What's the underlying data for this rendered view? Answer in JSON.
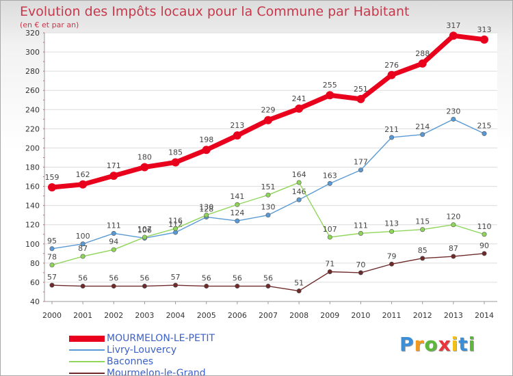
{
  "chart_data": {
    "type": "line",
    "title": "Evolution des Impôts locaux pour la Commune par Habitant",
    "subtitle": "(en € et par an)",
    "categories": [
      "2000",
      "2001",
      "2002",
      "2003",
      "2004",
      "2005",
      "2006",
      "2007",
      "2008",
      "2009",
      "2010",
      "2011",
      "2012",
      "2013",
      "2014"
    ],
    "ylim": [
      40,
      320
    ],
    "yticks": [
      40,
      60,
      80,
      100,
      120,
      140,
      160,
      180,
      200,
      220,
      240,
      260,
      280,
      300,
      320
    ],
    "grid": "horizontal",
    "legend_position": "bottom",
    "series": [
      {
        "name": "MOURMELON-LE-PETIT",
        "color": "#e8001c",
        "values": [
          159,
          162,
          171,
          180,
          185,
          198,
          213,
          229,
          241,
          255,
          251,
          276,
          288,
          317,
          313
        ]
      },
      {
        "name": "Livry-Louvercy",
        "color": "#5a9ad4",
        "values": [
          95,
          100,
          111,
          106,
          112,
          128,
          124,
          130,
          146,
          163,
          177,
          211,
          214,
          230,
          215
        ]
      },
      {
        "name": "Baconnes",
        "color": "#8fd55a",
        "values": [
          78,
          87,
          94,
          107,
          116,
          130,
          141,
          151,
          164,
          107,
          111,
          113,
          115,
          120,
          110
        ]
      },
      {
        "name": "Mourmelon-le-Grand",
        "color": "#6e2a2a",
        "values": [
          57,
          56,
          56,
          56,
          57,
          56,
          56,
          56,
          51,
          71,
          70,
          79,
          85,
          87,
          90
        ]
      }
    ]
  },
  "logo": {
    "letters": [
      "P",
      "r",
      "o",
      "x",
      "i",
      "t",
      "i"
    ],
    "colors": [
      "#3b8fd8",
      "#f39a1e",
      "#5cb83a",
      "#e8353b",
      "#f3c018",
      "#3b8fd8",
      "#5cb83a"
    ]
  }
}
